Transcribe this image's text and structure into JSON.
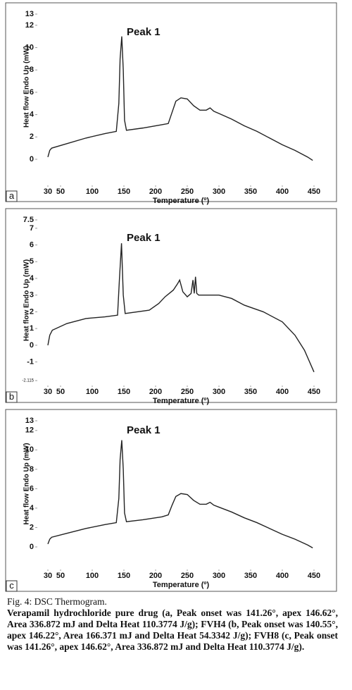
{
  "chart_data": [
    {
      "type": "line",
      "label": "a",
      "annotation": "Peak 1",
      "y_label": "Heat flow Endo Up (mW)",
      "x_label": "Temperature (º)",
      "x": [
        30,
        33,
        36,
        60,
        90,
        120,
        138,
        142,
        144,
        146.62,
        149,
        151,
        154,
        180,
        210,
        220,
        226,
        232,
        240,
        250,
        260,
        270,
        280,
        286,
        292,
        300,
        320,
        340,
        360,
        380,
        400,
        420,
        440,
        448
      ],
      "series": [
        {
          "color": "#222222",
          "values": [
            0.2,
            0.8,
            1.0,
            1.4,
            1.9,
            2.3,
            2.5,
            5.0,
            9.0,
            11.0,
            8.0,
            3.5,
            2.6,
            2.8,
            3.1,
            3.2,
            4.2,
            5.2,
            5.5,
            5.4,
            4.8,
            4.4,
            4.4,
            4.6,
            4.3,
            4.1,
            3.6,
            3.0,
            2.5,
            1.9,
            1.3,
            0.8,
            0.2,
            -0.1
          ]
        }
      ],
      "xlim": [
        30,
        450
      ],
      "xticks": [
        30,
        50,
        100,
        150,
        200,
        250,
        300,
        350,
        400,
        450
      ],
      "ylim": [
        0,
        13
      ],
      "yticks": [
        0,
        2,
        4,
        6,
        8,
        10,
        12,
        13
      ]
    },
    {
      "type": "line",
      "label": "b",
      "annotation": "Peak 1",
      "y_label": "Heat flow Endo Up (mW)",
      "x_label": "Temperature (º)",
      "x": [
        30,
        33,
        37,
        60,
        90,
        120,
        140,
        143,
        146.22,
        149,
        152,
        190,
        205,
        215,
        228,
        235,
        238,
        243,
        250,
        256,
        259,
        261,
        263,
        265,
        268,
        280,
        300,
        320,
        340,
        370,
        400,
        420,
        435,
        450
      ],
      "series": [
        {
          "color": "#222222",
          "values": [
            0.0,
            0.6,
            0.9,
            1.3,
            1.6,
            1.7,
            1.8,
            4.0,
            6.1,
            3.0,
            1.9,
            2.1,
            2.5,
            2.9,
            3.3,
            3.7,
            3.9,
            3.2,
            2.9,
            3.1,
            3.9,
            3.1,
            4.1,
            3.1,
            3.0,
            3.0,
            3.0,
            2.8,
            2.4,
            2.0,
            1.4,
            0.6,
            -0.3,
            -1.6
          ]
        }
      ],
      "xlim": [
        30,
        450
      ],
      "xticks": [
        30,
        50,
        100,
        150,
        200,
        250,
        300,
        350,
        400,
        450
      ],
      "ylim": [
        -2.115,
        7.5
      ],
      "yticks": [
        -2.115,
        -1,
        0,
        1,
        2,
        3,
        4,
        5,
        6,
        7,
        7.5
      ]
    },
    {
      "type": "line",
      "label": "c",
      "annotation": "Peak 1",
      "y_label": "Heat flow Endo Up (mW)",
      "x_label": "Temperature (º)",
      "x": [
        30,
        33,
        36,
        60,
        90,
        120,
        138,
        142,
        144,
        146.62,
        149,
        151,
        154,
        180,
        210,
        220,
        226,
        232,
        240,
        250,
        260,
        270,
        280,
        286,
        292,
        300,
        320,
        340,
        360,
        380,
        400,
        420,
        440,
        448
      ],
      "series": [
        {
          "color": "#222222",
          "values": [
            0.3,
            0.8,
            1.0,
            1.4,
            1.9,
            2.3,
            2.5,
            5.0,
            9.0,
            11.0,
            8.0,
            3.5,
            2.6,
            2.8,
            3.1,
            3.3,
            4.3,
            5.2,
            5.5,
            5.4,
            4.8,
            4.4,
            4.4,
            4.6,
            4.3,
            4.1,
            3.6,
            3.0,
            2.5,
            1.9,
            1.3,
            0.8,
            0.2,
            -0.1
          ]
        }
      ],
      "xlim": [
        30,
        450
      ],
      "xticks": [
        30,
        50,
        100,
        150,
        200,
        250,
        300,
        350,
        400,
        450
      ],
      "ylim": [
        0,
        13
      ],
      "yticks": [
        0,
        2,
        4,
        6,
        8,
        10,
        12,
        13
      ]
    }
  ],
  "caption": {
    "title": "Fig. 4: DSC Thermogram.",
    "text": "Verapamil hydrochloride pure drug (a, Peak onset was 141.26°, apex 146.62°, Area 336.872 mJ and Delta Heat 110.3774 J/g); FVH4 (b, Peak onset was 140.55°, apex 146.22°, Area 166.371 mJ and Delta Heat 54.3342 J/g); FVH8 (c, Peak onset was 141.26°, apex 146.62°, Area 336.872 mJ and Delta Heat 110.3774 J/g)."
  }
}
